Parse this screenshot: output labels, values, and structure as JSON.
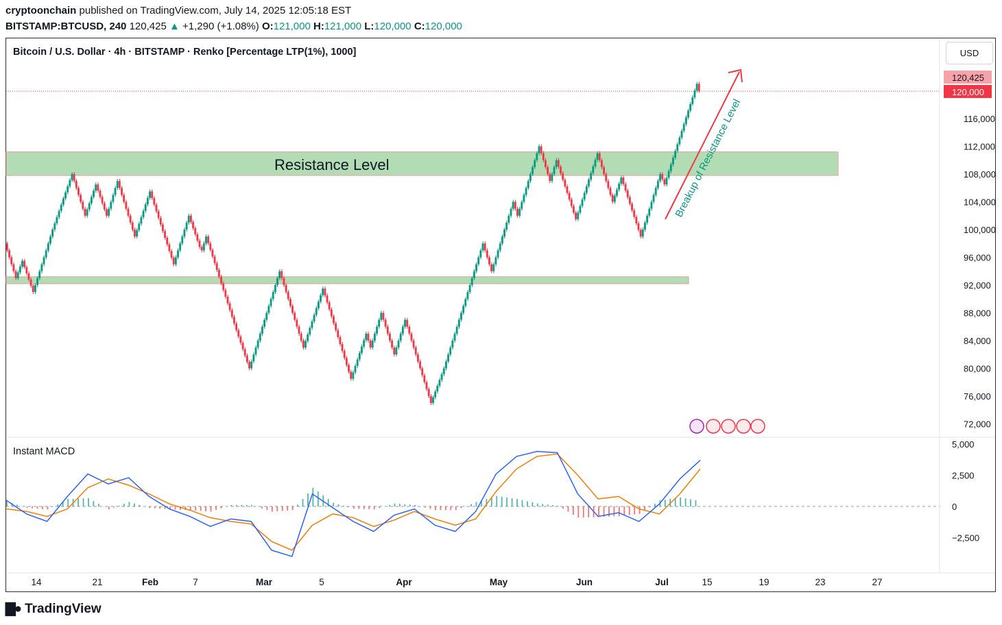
{
  "header": {
    "author": "cryptoonchain",
    "published_text": "published on TradingView.com, July 14, 2025 12:05:18 EST",
    "symbol": "BITSTAMP:BTCUSD, 240",
    "last": "120,425",
    "change": "+1,290 (+1.08%)",
    "open_label": "O:",
    "open": "121,000",
    "high_label": "H:",
    "high": "121,000",
    "low_label": "L:",
    "low": "120,000",
    "close_label": "C:",
    "close": "120,000"
  },
  "legend": "Bitcoin / U.S. Dollar · 4h · BITSTAMP · Renko [Percentage LTP(1%), 1000]",
  "currency_button": "USD",
  "macd_label": "Instant MACD",
  "brand": "TradingView",
  "annotations": {
    "resistance_text": "Resistance Level",
    "breakout_text": "Breakup of Resistance Level"
  },
  "colors": {
    "up": "#089981",
    "down": "#f23645",
    "zone": "#a5d6a7",
    "macd": "#2962ff",
    "signal": "#f57c00"
  },
  "chart_data": [
    {
      "type": "renko",
      "ylim": [
        70000,
        124000
      ],
      "y_ticks": [
        "116,000",
        "112,000",
        "108,000",
        "104,000",
        "100,000",
        "96,000",
        "92,000",
        "88,000",
        "84,000",
        "80,000",
        "76,000",
        "72,000"
      ],
      "y_tick_values": [
        116000,
        112000,
        108000,
        104000,
        100000,
        96000,
        92000,
        88000,
        84000,
        80000,
        76000,
        72000
      ],
      "x_ticks": [
        "14",
        "21",
        "Feb",
        "7",
        "Mar",
        "5",
        "Apr",
        "May",
        "Jun",
        "Jul",
        "15",
        "19",
        "23",
        "27"
      ],
      "price_labels": {
        "last": "120,425",
        "current": "120,000"
      },
      "zones": [
        {
          "label": "Resistance Level",
          "from": 107800,
          "to": 111200
        },
        {
          "label": "",
          "from": 92200,
          "to": 93200
        }
      ],
      "path": [
        [
          0,
          98000
        ],
        [
          3,
          93000
        ],
        [
          5,
          95500
        ],
        [
          7,
          91000
        ],
        [
          12,
          100000
        ],
        [
          17,
          104500
        ],
        [
          19,
          108000
        ],
        [
          21,
          102000
        ],
        [
          23,
          106500
        ],
        [
          25,
          102000
        ],
        [
          27,
          107000
        ],
        [
          30,
          99000
        ],
        [
          32,
          105500
        ],
        [
          35,
          95000
        ],
        [
          38,
          102000
        ],
        [
          40,
          97500
        ],
        [
          43,
          97000
        ],
        [
          45,
          99000
        ],
        [
          49,
          85500
        ],
        [
          52,
          80000
        ],
        [
          58,
          94000
        ],
        [
          63,
          83000
        ],
        [
          67,
          91500
        ],
        [
          72,
          78500
        ],
        [
          77,
          85000
        ],
        [
          79,
          83000
        ],
        [
          81,
          88000
        ],
        [
          84,
          82000
        ],
        [
          86,
          87000
        ],
        [
          90,
          78000
        ],
        [
          94,
          75000
        ],
        [
          96,
          77500
        ],
        [
          99,
          80000
        ],
        [
          103,
          88000
        ],
        [
          110,
          98000
        ],
        [
          112,
          94000
        ],
        [
          116,
          104000
        ],
        [
          118,
          102000
        ],
        [
          122,
          105000
        ],
        [
          124,
          112000
        ],
        [
          127,
          107000
        ],
        [
          129,
          110000
        ],
        [
          132,
          101500
        ],
        [
          134,
          111000
        ],
        [
          137,
          104000
        ],
        [
          138,
          107500
        ],
        [
          141,
          99000
        ],
        [
          144,
          108000
        ],
        [
          146,
          106500
        ],
        [
          154,
          121000
        ],
        [
          155,
          120000
        ]
      ]
    },
    {
      "type": "line",
      "title": "Instant MACD",
      "ylim": [
        -7000,
        5800
      ],
      "y_ticks": [
        "5,000",
        "2,500",
        "0",
        "−2,500"
      ],
      "y_tick_values": [
        5000,
        2500,
        0,
        -2500
      ],
      "series": [
        {
          "name": "MACD",
          "values": [
            500,
            -600,
            -1200,
            800,
            2600,
            1800,
            2300,
            800,
            -200,
            -800,
            -1600,
            -1000,
            -1200,
            -3500,
            -4000,
            1000,
            -100,
            -1200,
            -2000,
            -700,
            -200,
            -1500,
            -2000,
            -400,
            2600,
            4000,
            4400,
            4300,
            1000,
            -800,
            -500,
            -1200,
            200,
            2200,
            3700
          ]
        },
        {
          "name": "Signal",
          "values": [
            -200,
            -400,
            -800,
            -200,
            1500,
            2200,
            1700,
            1000,
            200,
            -300,
            -900,
            -1200,
            -1400,
            -2800,
            -3500,
            -1500,
            -600,
            -900,
            -1600,
            -1100,
            -400,
            -1000,
            -1500,
            -1000,
            1200,
            3000,
            4000,
            4200,
            2500,
            600,
            800,
            -200,
            -600,
            1000,
            3000
          ]
        }
      ]
    }
  ]
}
